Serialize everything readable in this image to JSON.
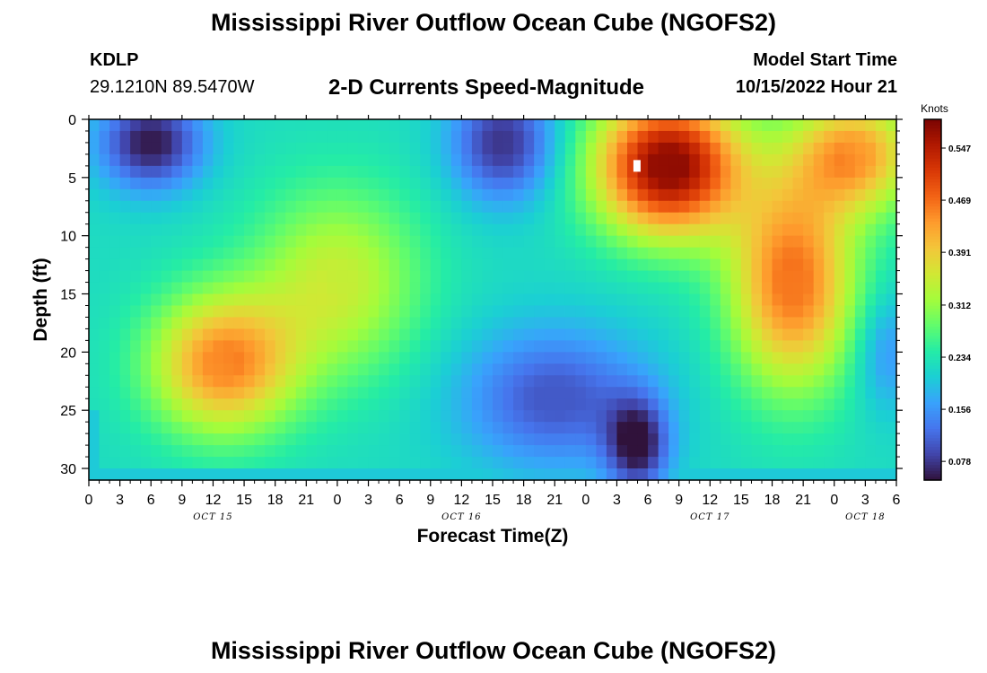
{
  "page": {
    "title_top": "Mississippi River Outflow Ocean Cube (NGOFS2)",
    "title_bottom": "Mississippi River Outflow Ocean Cube (NGOFS2)",
    "station_id": "KDLP",
    "station_coords": "29.1210N  89.5470W",
    "subtitle": "2-D Currents Speed-Magnitude",
    "model_start_label": "Model Start Time",
    "model_start_value": "10/15/2022 Hour 21"
  },
  "chart_data": {
    "type": "heatmap",
    "xlabel": "Forecast Time(Z)",
    "ylabel": "Depth (ft)",
    "x_tick_labels": [
      "0",
      "3",
      "6",
      "9",
      "12",
      "15",
      "18",
      "21",
      "0",
      "3",
      "6",
      "9",
      "12",
      "15",
      "18",
      "21",
      "0",
      "3",
      "6",
      "9",
      "12",
      "15",
      "18",
      "21",
      "0",
      "3",
      "6"
    ],
    "x_range_hours": [
      0,
      78
    ],
    "date_labels": [
      {
        "label": "OCT 15",
        "at_hour": 12
      },
      {
        "label": "OCT 16",
        "at_hour": 36
      },
      {
        "label": "OCT 17",
        "at_hour": 60
      },
      {
        "label": "OCT 18",
        "at_hour": 75
      }
    ],
    "y_tick_labels": [
      "0",
      "5",
      "10",
      "15",
      "20",
      "25",
      "30"
    ],
    "y_ticks": [
      0,
      5,
      10,
      15,
      20,
      25,
      30
    ],
    "y_range": [
      0,
      31
    ],
    "y_inverted": true,
    "colorbar": {
      "title": "Knots",
      "tick_labels": [
        "0.547",
        "0.469",
        "0.391",
        "0.312",
        "0.234",
        "0.156",
        "0.078"
      ],
      "ticks": [
        0.547,
        0.469,
        0.391,
        0.312,
        0.234,
        0.156,
        0.078
      ],
      "range": [
        0.05,
        0.59
      ]
    },
    "field_features_knots": [
      {
        "hour": 6,
        "depth": 2,
        "value": 0.05,
        "spread_h": 5,
        "spread_d": 4
      },
      {
        "hour": 13,
        "depth": 21,
        "value": 0.45,
        "spread_h": 7,
        "spread_d": 6
      },
      {
        "hour": 24,
        "depth": 14,
        "value": 0.35,
        "spread_h": 8,
        "spread_d": 8
      },
      {
        "hour": 40,
        "depth": 2,
        "value": 0.07,
        "spread_h": 5,
        "spread_d": 5
      },
      {
        "hour": 45,
        "depth": 24,
        "value": 0.1,
        "spread_h": 9,
        "spread_d": 6
      },
      {
        "hour": 53,
        "depth": 28,
        "value": 0.06,
        "spread_h": 3,
        "spread_d": 4
      },
      {
        "hour": 56,
        "depth": 4,
        "value": 0.59,
        "spread_h": 7,
        "spread_d": 6
      },
      {
        "hour": 68,
        "depth": 14,
        "value": 0.47,
        "spread_h": 6,
        "spread_d": 9
      },
      {
        "hour": 74,
        "depth": 3,
        "value": 0.43,
        "spread_h": 6,
        "spread_d": 5
      },
      {
        "hour": 77,
        "depth": 20,
        "value": 0.15,
        "spread_h": 3,
        "spread_d": 5
      }
    ],
    "background_value_knots": 0.22,
    "colors": {
      "scale": [
        "#30123b",
        "#4145ab",
        "#4675ed",
        "#39a2fc",
        "#1bcfd4",
        "#24eca6",
        "#61fc6c",
        "#a4fc3b",
        "#d1e834",
        "#f3c63a",
        "#fe9b2d",
        "#f36315",
        "#d93806",
        "#b11901",
        "#7a0402"
      ],
      "frame": "#000000",
      "marker": "#ffffff"
    }
  }
}
